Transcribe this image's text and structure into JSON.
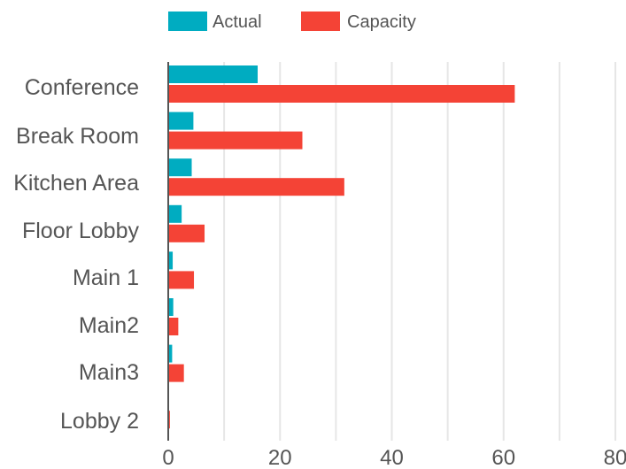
{
  "chart_data": {
    "type": "bar",
    "orientation": "horizontal",
    "categories": [
      "Conference",
      "Break Room",
      "Kitchen Area",
      "Floor Lobby",
      "Main 1",
      "Main2",
      "Main3",
      "Lobby 2"
    ],
    "series": [
      {
        "name": "Actual",
        "color": "#00ACC1",
        "values": [
          16,
          4.5,
          4.2,
          2.4,
          0.8,
          0.9,
          0.7,
          0
        ]
      },
      {
        "name": "Capacity",
        "color": "#F44336",
        "values": [
          62,
          24,
          31.5,
          6.5,
          4.6,
          1.8,
          2.8,
          0.3
        ]
      }
    ],
    "xlim": [
      0,
      80
    ],
    "xticks": [
      "0",
      "20",
      "40",
      "60",
      "80"
    ],
    "grid": true,
    "legend": "top-center"
  }
}
